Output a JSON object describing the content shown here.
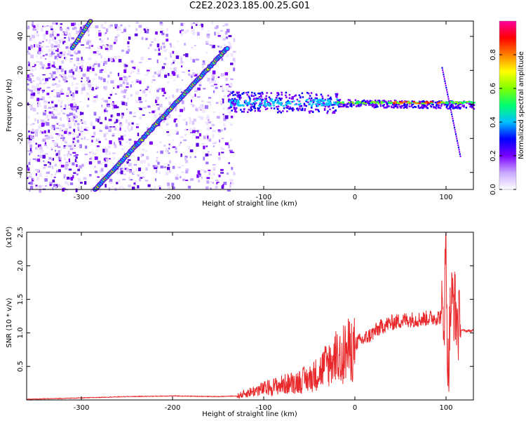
{
  "title": "C2E2.2023.185.00.25.G01",
  "chart_data": [
    {
      "type": "heatmap",
      "xlabel": "Height of straight line (km)",
      "ylabel": "Frequency (Hz)",
      "xlim": [
        -360,
        130
      ],
      "ylim": [
        -50,
        49
      ],
      "xticks": [
        -300,
        -200,
        -100,
        0,
        100
      ],
      "yticks": [
        -40,
        -20,
        0,
        20,
        40
      ],
      "colorbar": {
        "label": "Normalized spectral amplitude",
        "range": [
          0,
          1
        ],
        "ticks": [
          "0.0",
          "0.2",
          "0.4",
          "0.6",
          "0.8"
        ],
        "colors": [
          "#ffffff",
          "#c9a8ff",
          "#7a00ff",
          "#0000ff",
          "#00c0ff",
          "#00ff70",
          "#80ff00",
          "#ffff00",
          "#ff8000",
          "#ff0000",
          "#ff00a0"
        ]
      },
      "features": [
        {
          "name": "diagonal track",
          "x": [
            -285,
            -140
          ],
          "y": [
            -50,
            33
          ]
        },
        {
          "name": "upper diagonal track",
          "x": [
            -310,
            -290
          ],
          "y": [
            33,
            49
          ]
        },
        {
          "name": "carrier band",
          "x": [
            -140,
            130
          ],
          "y": [
            2,
            0
          ]
        },
        {
          "name": "dispersed trace",
          "x": [
            95,
            115
          ],
          "y": [
            22,
            -30
          ]
        }
      ]
    },
    {
      "type": "line",
      "xlabel": "Height of straight line (km)",
      "ylabel": "SNR (10 * v/v)",
      "multiplier": "(x10⁴)",
      "xlim": [
        -360,
        130
      ],
      "ylim": [
        0,
        2.5
      ],
      "xticks": [
        -300,
        -200,
        -100,
        0,
        100
      ],
      "yticks": [
        0.5,
        1.0,
        1.5,
        2.0,
        2.5
      ],
      "color": "#e8282a",
      "series": [
        {
          "x": [
            -360,
            -300,
            -250,
            -200,
            -150,
            -130,
            -110,
            -90,
            -70,
            -50,
            -40,
            -30,
            -20,
            -15,
            -10,
            0,
            10,
            20,
            30,
            40,
            50,
            60,
            70,
            80,
            90,
            95,
            98,
            100,
            102,
            105,
            108,
            112,
            115,
            120,
            130
          ],
          "y": [
            0.01,
            0.03,
            0.05,
            0.06,
            0.05,
            0.06,
            0.15,
            0.22,
            0.28,
            0.35,
            0.45,
            0.6,
            0.7,
            0.75,
            0.8,
            0.85,
            0.9,
            1.0,
            1.1,
            1.15,
            1.18,
            1.2,
            1.2,
            1.22,
            1.23,
            1.25,
            1.3,
            2.4,
            0.3,
            1.4,
            1.5,
            1.2,
            1.05,
            1.03,
            1.03
          ]
        }
      ]
    }
  ]
}
